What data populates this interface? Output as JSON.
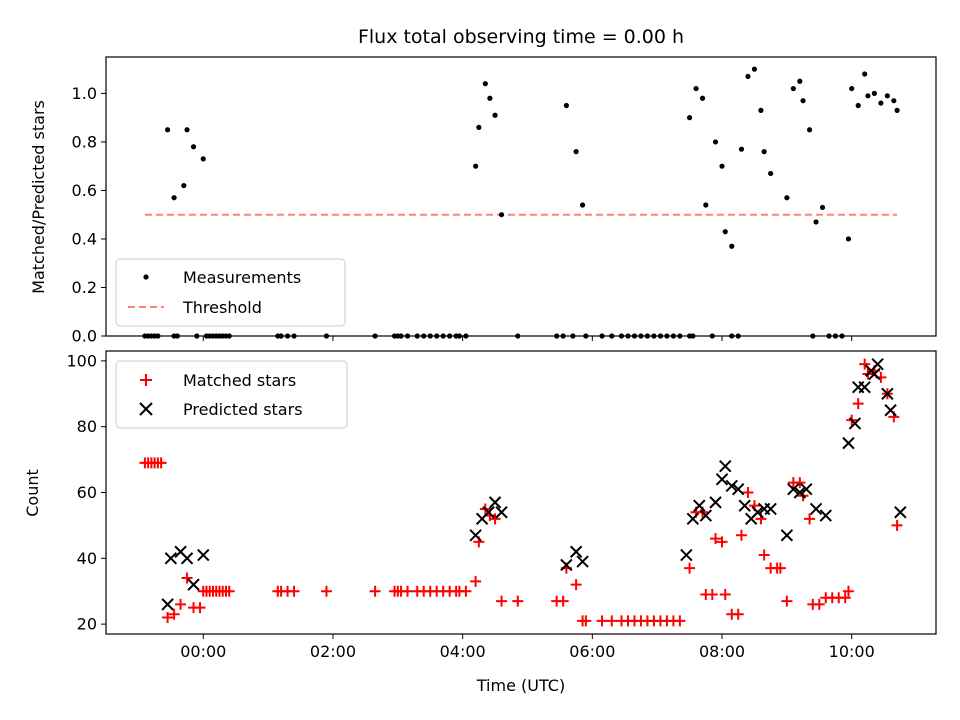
{
  "chart_data": [
    {
      "type": "scatter",
      "title": "Flux total observing time = 0.00 h",
      "xlabel": "",
      "ylabel": "Matched/Predicted stars",
      "xlim": [
        -1.5,
        11.3
      ],
      "ylim": [
        0,
        1.15
      ],
      "yticks": [
        0.0,
        0.2,
        0.4,
        0.6,
        0.8,
        1.0
      ],
      "ytick_labels": [
        "0.0",
        "0.2",
        "0.4",
        "0.6",
        "0.8",
        "1.0"
      ],
      "xticks": [
        0,
        2,
        4,
        6,
        8,
        10
      ],
      "legend": {
        "position": "lower-left",
        "entries": [
          "Measurements",
          "Threshold"
        ]
      },
      "threshold": {
        "name": "Threshold",
        "y": 0.5,
        "x_start": -0.9,
        "x_end": 10.7,
        "color": "#ff8080"
      },
      "series": [
        {
          "name": "Measurements",
          "color": "#000000",
          "points": [
            [
              -0.55,
              0.85
            ],
            [
              -0.45,
              0.57
            ],
            [
              -0.3,
              0.62
            ],
            [
              -0.25,
              0.85
            ],
            [
              -0.15,
              0.78
            ],
            [
              0.0,
              0.73
            ],
            [
              -0.9,
              0
            ],
            [
              -0.85,
              0
            ],
            [
              -0.8,
              0
            ],
            [
              -0.75,
              0
            ],
            [
              -0.7,
              0
            ],
            [
              -0.45,
              0
            ],
            [
              -0.4,
              0
            ],
            [
              -0.1,
              0
            ],
            [
              0.05,
              0
            ],
            [
              0.1,
              0
            ],
            [
              0.15,
              0
            ],
            [
              0.2,
              0
            ],
            [
              0.25,
              0
            ],
            [
              0.3,
              0
            ],
            [
              0.35,
              0
            ],
            [
              0.4,
              0
            ],
            [
              1.15,
              0
            ],
            [
              1.2,
              0
            ],
            [
              1.3,
              0
            ],
            [
              1.4,
              0
            ],
            [
              1.9,
              0
            ],
            [
              2.65,
              0
            ],
            [
              2.95,
              0
            ],
            [
              3.0,
              0
            ],
            [
              3.05,
              0
            ],
            [
              3.15,
              0
            ],
            [
              3.3,
              0
            ],
            [
              3.4,
              0
            ],
            [
              3.5,
              0
            ],
            [
              3.6,
              0
            ],
            [
              3.7,
              0
            ],
            [
              3.8,
              0
            ],
            [
              3.9,
              0
            ],
            [
              3.95,
              0
            ],
            [
              4.05,
              0
            ],
            [
              4.2,
              0.7
            ],
            [
              4.25,
              0.86
            ],
            [
              4.35,
              1.04
            ],
            [
              4.42,
              0.98
            ],
            [
              4.5,
              0.91
            ],
            [
              4.6,
              0.5
            ],
            [
              4.85,
              0
            ],
            [
              5.45,
              0
            ],
            [
              5.55,
              0
            ],
            [
              5.6,
              0.95
            ],
            [
              5.75,
              0.76
            ],
            [
              5.85,
              0.54
            ],
            [
              5.7,
              0
            ],
            [
              5.9,
              0
            ],
            [
              6.15,
              0
            ],
            [
              6.3,
              0
            ],
            [
              6.45,
              0
            ],
            [
              6.55,
              0
            ],
            [
              6.65,
              0
            ],
            [
              6.75,
              0
            ],
            [
              6.85,
              0
            ],
            [
              6.95,
              0
            ],
            [
              7.05,
              0
            ],
            [
              7.15,
              0
            ],
            [
              7.25,
              0
            ],
            [
              7.35,
              0
            ],
            [
              7.5,
              0
            ],
            [
              7.5,
              0.9
            ],
            [
              7.6,
              1.02
            ],
            [
              7.7,
              0.98
            ],
            [
              7.75,
              0.54
            ],
            [
              7.9,
              0.8
            ],
            [
              8.0,
              0.7
            ],
            [
              8.05,
              0.43
            ],
            [
              8.15,
              0.37
            ],
            [
              8.3,
              0.77
            ],
            [
              8.4,
              1.07
            ],
            [
              8.5,
              1.1
            ],
            [
              8.6,
              0.93
            ],
            [
              8.65,
              0.76
            ],
            [
              8.75,
              0.67
            ],
            [
              9.0,
              0.57
            ],
            [
              9.1,
              1.02
            ],
            [
              9.2,
              1.05
            ],
            [
              9.25,
              0.97
            ],
            [
              9.35,
              0.85
            ],
            [
              9.45,
              0.47
            ],
            [
              9.55,
              0.53
            ],
            [
              9.95,
              0.4
            ],
            [
              10.0,
              1.02
            ],
            [
              10.1,
              0.95
            ],
            [
              10.2,
              1.08
            ],
            [
              10.25,
              0.99
            ],
            [
              10.35,
              1.0
            ],
            [
              10.45,
              0.96
            ],
            [
              10.55,
              0.99
            ],
            [
              10.65,
              0.97
            ],
            [
              10.7,
              0.93
            ],
            [
              7.55,
              0
            ],
            [
              7.85,
              0
            ],
            [
              8.15,
              0
            ],
            [
              8.25,
              0
            ],
            [
              9.4,
              0
            ],
            [
              9.65,
              0
            ],
            [
              9.75,
              0
            ],
            [
              9.85,
              0
            ]
          ]
        }
      ]
    },
    {
      "type": "scatter",
      "title": "",
      "xlabel": "Time (UTC)",
      "ylabel": "Count",
      "xlim": [
        -1.5,
        11.3
      ],
      "ylim": [
        17,
        103
      ],
      "yticks": [
        20,
        40,
        60,
        80,
        100
      ],
      "ytick_labels": [
        "20",
        "40",
        "60",
        "80",
        "100"
      ],
      "xticks": [
        0,
        2,
        4,
        6,
        8,
        10
      ],
      "xtick_labels": [
        "00:00",
        "02:00",
        "04:00",
        "06:00",
        "08:00",
        "10:00"
      ],
      "legend": {
        "position": "top-left",
        "entries": [
          "Matched stars",
          "Predicted stars"
        ]
      },
      "series": [
        {
          "name": "Matched stars",
          "marker": "plus",
          "color": "#ff0000",
          "points": [
            [
              -0.9,
              69
            ],
            [
              -0.85,
              69
            ],
            [
              -0.8,
              69
            ],
            [
              -0.75,
              69
            ],
            [
              -0.7,
              69
            ],
            [
              -0.65,
              69
            ],
            [
              -0.55,
              22
            ],
            [
              -0.45,
              23
            ],
            [
              -0.35,
              26
            ],
            [
              -0.25,
              34
            ],
            [
              -0.15,
              25
            ],
            [
              -0.05,
              25
            ],
            [
              0.0,
              30
            ],
            [
              0.05,
              30
            ],
            [
              0.1,
              30
            ],
            [
              0.15,
              30
            ],
            [
              0.2,
              30
            ],
            [
              0.25,
              30
            ],
            [
              0.3,
              30
            ],
            [
              0.35,
              30
            ],
            [
              0.4,
              30
            ],
            [
              1.15,
              30
            ],
            [
              1.2,
              30
            ],
            [
              1.3,
              30
            ],
            [
              1.4,
              30
            ],
            [
              1.9,
              30
            ],
            [
              2.65,
              30
            ],
            [
              2.95,
              30
            ],
            [
              3.0,
              30
            ],
            [
              3.05,
              30
            ],
            [
              3.15,
              30
            ],
            [
              3.3,
              30
            ],
            [
              3.4,
              30
            ],
            [
              3.5,
              30
            ],
            [
              3.6,
              30
            ],
            [
              3.7,
              30
            ],
            [
              3.8,
              30
            ],
            [
              3.9,
              30
            ],
            [
              3.95,
              30
            ],
            [
              4.05,
              30
            ],
            [
              4.2,
              33
            ],
            [
              4.25,
              45
            ],
            [
              4.35,
              55
            ],
            [
              4.42,
              53
            ],
            [
              4.5,
              52
            ],
            [
              4.6,
              27
            ],
            [
              4.85,
              27
            ],
            [
              5.45,
              27
            ],
            [
              5.55,
              27
            ],
            [
              5.6,
              37
            ],
            [
              5.75,
              32
            ],
            [
              5.85,
              21
            ],
            [
              5.9,
              21
            ],
            [
              6.15,
              21
            ],
            [
              6.3,
              21
            ],
            [
              6.45,
              21
            ],
            [
              6.55,
              21
            ],
            [
              6.65,
              21
            ],
            [
              6.75,
              21
            ],
            [
              6.85,
              21
            ],
            [
              6.95,
              21
            ],
            [
              7.05,
              21
            ],
            [
              7.15,
              21
            ],
            [
              7.25,
              21
            ],
            [
              7.35,
              21
            ],
            [
              7.5,
              37
            ],
            [
              7.6,
              54
            ],
            [
              7.7,
              54
            ],
            [
              7.75,
              29
            ],
            [
              7.85,
              29
            ],
            [
              7.9,
              46
            ],
            [
              8.0,
              45
            ],
            [
              8.05,
              29
            ],
            [
              8.15,
              23
            ],
            [
              8.25,
              23
            ],
            [
              8.3,
              47
            ],
            [
              8.4,
              60
            ],
            [
              8.5,
              56
            ],
            [
              8.6,
              52
            ],
            [
              8.65,
              41
            ],
            [
              8.75,
              37
            ],
            [
              8.85,
              37
            ],
            [
              8.9,
              37
            ],
            [
              9.0,
              27
            ],
            [
              9.1,
              63
            ],
            [
              9.2,
              63
            ],
            [
              9.25,
              59
            ],
            [
              9.35,
              52
            ],
            [
              9.4,
              26
            ],
            [
              9.5,
              26
            ],
            [
              9.6,
              28
            ],
            [
              9.7,
              28
            ],
            [
              9.8,
              28
            ],
            [
              9.9,
              28
            ],
            [
              9.95,
              30
            ],
            [
              10.0,
              82
            ],
            [
              10.1,
              87
            ],
            [
              10.2,
              99
            ],
            [
              10.25,
              96
            ],
            [
              10.35,
              97
            ],
            [
              10.45,
              95
            ],
            [
              10.55,
              90
            ],
            [
              10.65,
              83
            ],
            [
              10.7,
              50
            ]
          ]
        },
        {
          "name": "Predicted stars",
          "marker": "cross",
          "color": "#000000",
          "points": [
            [
              -0.55,
              26
            ],
            [
              -0.5,
              40
            ],
            [
              -0.35,
              42
            ],
            [
              -0.25,
              40
            ],
            [
              -0.15,
              32
            ],
            [
              0.0,
              41
            ],
            [
              4.2,
              47
            ],
            [
              4.3,
              52
            ],
            [
              4.4,
              54
            ],
            [
              4.5,
              57
            ],
            [
              4.6,
              54
            ],
            [
              5.6,
              38
            ],
            [
              5.75,
              42
            ],
            [
              5.85,
              39
            ],
            [
              7.45,
              41
            ],
            [
              7.55,
              52
            ],
            [
              7.65,
              56
            ],
            [
              7.75,
              53
            ],
            [
              7.9,
              57
            ],
            [
              8.0,
              64
            ],
            [
              8.05,
              68
            ],
            [
              8.15,
              62
            ],
            [
              8.25,
              61
            ],
            [
              8.35,
              56
            ],
            [
              8.45,
              52
            ],
            [
              8.55,
              54
            ],
            [
              8.65,
              55
            ],
            [
              8.75,
              55
            ],
            [
              9.0,
              47
            ],
            [
              9.1,
              61
            ],
            [
              9.2,
              60
            ],
            [
              9.3,
              61
            ],
            [
              9.45,
              55
            ],
            [
              9.6,
              53
            ],
            [
              9.95,
              75
            ],
            [
              10.05,
              81
            ],
            [
              10.1,
              92
            ],
            [
              10.2,
              92
            ],
            [
              10.3,
              97
            ],
            [
              10.35,
              96
            ],
            [
              10.4,
              99
            ],
            [
              10.55,
              90
            ],
            [
              10.6,
              85
            ],
            [
              10.75,
              54
            ]
          ]
        }
      ]
    }
  ]
}
